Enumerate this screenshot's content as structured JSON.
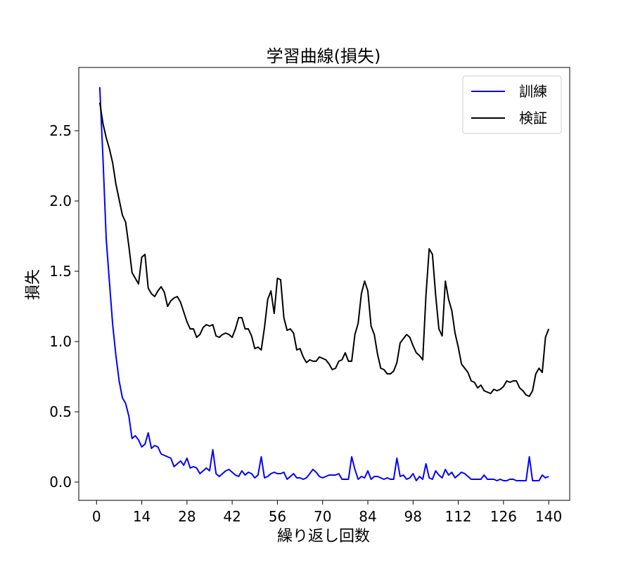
{
  "chart_data": {
    "type": "line",
    "title": "学習曲線(損失)",
    "xlabel": "繰り返し回数",
    "ylabel": "損失",
    "xlim": [
      -5.5,
      146.5
    ],
    "ylim": [
      -0.13,
      2.95
    ],
    "xticks": [
      0,
      14,
      28,
      42,
      56,
      70,
      84,
      98,
      112,
      126,
      140
    ],
    "yticks": [
      0.0,
      0.5,
      1.0,
      1.5,
      2.0,
      2.5
    ],
    "ytick_labels": [
      "0.0",
      "0.5",
      "1.0",
      "1.5",
      "2.0",
      "2.5"
    ],
    "grid": false,
    "legend_position": "upper right",
    "series": [
      {
        "name": "訓練",
        "color": "#0000ff",
        "x": [
          1,
          2,
          3,
          4,
          5,
          6,
          7,
          8,
          9,
          10,
          11,
          12,
          13,
          14,
          15,
          16,
          17,
          18,
          19,
          20,
          21,
          22,
          23,
          24,
          25,
          26,
          27,
          28,
          29,
          30,
          31,
          32,
          33,
          34,
          35,
          36,
          37,
          38,
          39,
          40,
          41,
          42,
          43,
          44,
          45,
          46,
          47,
          48,
          49,
          50,
          51,
          52,
          53,
          54,
          55,
          56,
          57,
          58,
          59,
          60,
          61,
          62,
          63,
          64,
          65,
          66,
          67,
          68,
          69,
          70,
          71,
          72,
          73,
          74,
          75,
          76,
          77,
          78,
          79,
          80,
          81,
          82,
          83,
          84,
          85,
          86,
          87,
          88,
          89,
          90,
          91,
          92,
          93,
          94,
          95,
          96,
          97,
          98,
          99,
          100,
          101,
          102,
          103,
          104,
          105,
          106,
          107,
          108,
          109,
          110,
          111,
          112,
          113,
          114,
          115,
          116,
          117,
          118,
          119,
          120,
          121,
          122,
          123,
          124,
          125,
          126,
          127,
          128,
          129,
          130,
          131,
          132,
          133,
          134,
          135,
          136,
          137,
          138,
          139,
          140
        ],
        "y": [
          2.81,
          2.3,
          1.73,
          1.42,
          1.12,
          0.9,
          0.72,
          0.6,
          0.56,
          0.47,
          0.31,
          0.33,
          0.3,
          0.25,
          0.27,
          0.35,
          0.24,
          0.26,
          0.25,
          0.2,
          0.19,
          0.18,
          0.17,
          0.11,
          0.13,
          0.15,
          0.12,
          0.17,
          0.1,
          0.11,
          0.1,
          0.06,
          0.08,
          0.1,
          0.08,
          0.23,
          0.06,
          0.04,
          0.06,
          0.08,
          0.09,
          0.07,
          0.05,
          0.04,
          0.08,
          0.05,
          0.07,
          0.06,
          0.03,
          0.05,
          0.18,
          0.03,
          0.04,
          0.06,
          0.07,
          0.06,
          0.06,
          0.07,
          0.02,
          0.04,
          0.06,
          0.03,
          0.03,
          0.02,
          0.03,
          0.06,
          0.09,
          0.07,
          0.04,
          0.03,
          0.04,
          0.05,
          0.05,
          0.05,
          0.06,
          0.02,
          0.02,
          0.02,
          0.18,
          0.09,
          0.02,
          0.04,
          0.03,
          0.08,
          0.02,
          0.04,
          0.04,
          0.03,
          0.02,
          0.03,
          0.02,
          0.02,
          0.17,
          0.04,
          0.05,
          0.02,
          0.03,
          0.06,
          0.01,
          0.04,
          0.02,
          0.13,
          0.03,
          0.02,
          0.08,
          0.05,
          0.03,
          0.09,
          0.05,
          0.07,
          0.03,
          0.05,
          0.07,
          0.06,
          0.04,
          0.02,
          0.02,
          0.02,
          0.02,
          0.05,
          0.02,
          0.02,
          0.02,
          0.01,
          0.02,
          0.01,
          0.01,
          0.02,
          0.02,
          0.01,
          0.01,
          0.01,
          0.01,
          0.18,
          0.01,
          0.01,
          0.01,
          0.05,
          0.03,
          0.04
        ]
      },
      {
        "name": "検証",
        "color": "#000000",
        "x": [
          1,
          2,
          3,
          4,
          5,
          6,
          7,
          8,
          9,
          10,
          11,
          12,
          13,
          14,
          15,
          16,
          17,
          18,
          19,
          20,
          21,
          22,
          23,
          24,
          25,
          26,
          27,
          28,
          29,
          30,
          31,
          32,
          33,
          34,
          35,
          36,
          37,
          38,
          39,
          40,
          41,
          42,
          43,
          44,
          45,
          46,
          47,
          48,
          49,
          50,
          51,
          52,
          53,
          54,
          55,
          56,
          57,
          58,
          59,
          60,
          61,
          62,
          63,
          64,
          65,
          66,
          67,
          68,
          69,
          70,
          71,
          72,
          73,
          74,
          75,
          76,
          77,
          78,
          79,
          80,
          81,
          82,
          83,
          84,
          85,
          86,
          87,
          88,
          89,
          90,
          91,
          92,
          93,
          94,
          95,
          96,
          97,
          98,
          99,
          100,
          101,
          102,
          103,
          104,
          105,
          106,
          107,
          108,
          109,
          110,
          111,
          112,
          113,
          114,
          115,
          116,
          117,
          118,
          119,
          120,
          121,
          122,
          123,
          124,
          125,
          126,
          127,
          128,
          129,
          130,
          131,
          132,
          133,
          134,
          135,
          136,
          137,
          138,
          139,
          140
        ],
        "y": [
          2.7,
          2.55,
          2.45,
          2.37,
          2.27,
          2.12,
          2.01,
          1.9,
          1.85,
          1.68,
          1.49,
          1.45,
          1.41,
          1.6,
          1.62,
          1.38,
          1.34,
          1.32,
          1.36,
          1.39,
          1.35,
          1.25,
          1.29,
          1.31,
          1.32,
          1.28,
          1.21,
          1.14,
          1.09,
          1.09,
          1.03,
          1.05,
          1.1,
          1.12,
          1.11,
          1.12,
          1.04,
          1.03,
          1.05,
          1.06,
          1.05,
          1.03,
          1.09,
          1.17,
          1.17,
          1.09,
          1.09,
          1.04,
          0.95,
          0.96,
          0.94,
          1.1,
          1.3,
          1.36,
          1.2,
          1.45,
          1.44,
          1.17,
          1.08,
          1.09,
          1.06,
          0.94,
          0.95,
          0.89,
          0.85,
          0.87,
          0.86,
          0.86,
          0.89,
          0.88,
          0.87,
          0.84,
          0.8,
          0.81,
          0.86,
          0.87,
          0.92,
          0.86,
          0.86,
          1.05,
          1.13,
          1.34,
          1.43,
          1.36,
          1.11,
          1.05,
          0.91,
          0.81,
          0.8,
          0.77,
          0.77,
          0.79,
          0.85,
          0.99,
          1.02,
          1.05,
          1.03,
          0.97,
          0.92,
          0.9,
          0.87,
          1.33,
          1.66,
          1.62,
          1.33,
          1.09,
          1.04,
          1.43,
          1.3,
          1.22,
          1.06,
          0.96,
          0.84,
          0.81,
          0.78,
          0.72,
          0.71,
          0.67,
          0.69,
          0.65,
          0.64,
          0.63,
          0.66,
          0.65,
          0.66,
          0.68,
          0.72,
          0.71,
          0.72,
          0.72,
          0.67,
          0.65,
          0.62,
          0.61,
          0.65,
          0.77,
          0.81,
          0.78,
          1.03,
          1.09
        ]
      }
    ]
  }
}
